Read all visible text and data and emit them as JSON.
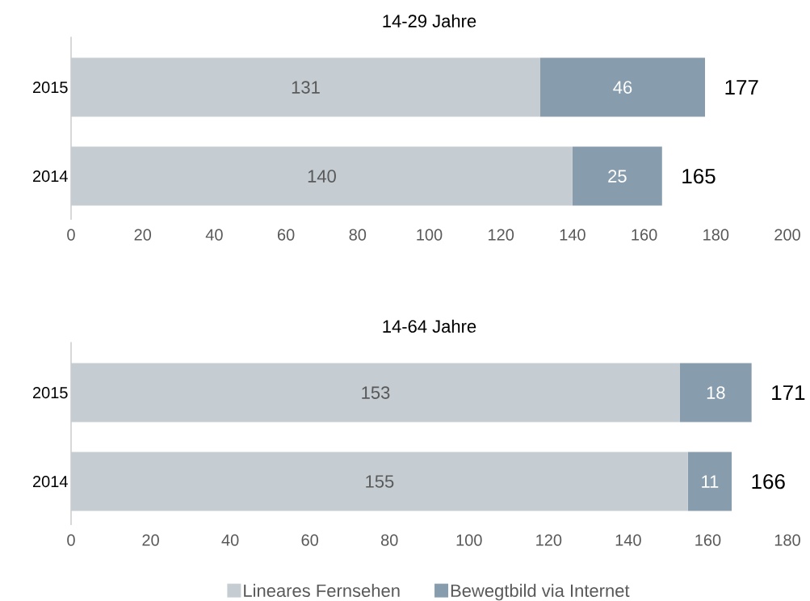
{
  "chart_data": [
    {
      "type": "bar",
      "orientation": "horizontal",
      "stacked": true,
      "title": "14-29 Jahre",
      "categories": [
        "2015",
        "2014"
      ],
      "xlim": [
        0,
        200
      ],
      "xticks": [
        0,
        20,
        40,
        60,
        80,
        100,
        120,
        140,
        160,
        180,
        200
      ],
      "data_labels": true,
      "totals": [
        "177",
        "165"
      ],
      "legend": false,
      "series": [
        {
          "color": "#c5cdd3",
          "values": [
            131,
            140
          ]
        },
        {
          "color": "#879dae",
          "values": [
            46,
            25
          ]
        }
      ]
    },
    {
      "type": "bar",
      "orientation": "horizontal",
      "stacked": true,
      "title": "14-64 Jahre",
      "categories": [
        "2015",
        "2014"
      ],
      "xlim": [
        0,
        180
      ],
      "xticks": [
        0,
        20,
        40,
        60,
        80,
        100,
        120,
        140,
        160,
        180
      ],
      "data_labels": true,
      "totals": [
        "171",
        "166"
      ],
      "legend": "bottom",
      "series": [
        {
          "name": "Lineares Fernsehen",
          "color": "#c5cdd3",
          "values": [
            153,
            155
          ]
        },
        {
          "name": "Bewegtbild via Internet",
          "color": "#879dae",
          "values": [
            18,
            11
          ]
        }
      ]
    }
  ]
}
